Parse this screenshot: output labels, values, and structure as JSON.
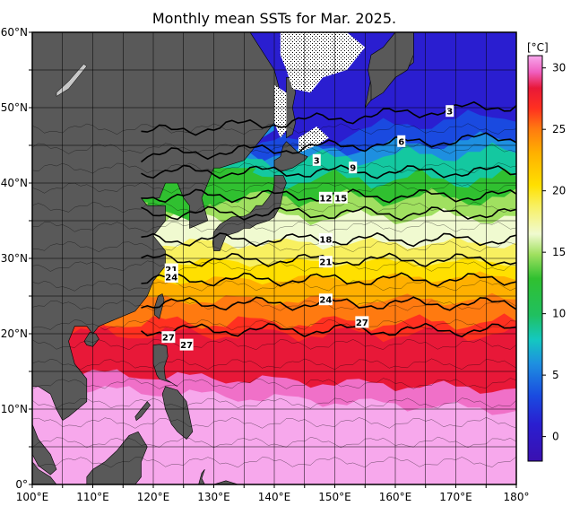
{
  "title": "Monthly mean SSTs for Mar. 2025.",
  "colorbar": {
    "unit": "[°C]",
    "ticks": [
      "30",
      "25",
      "20",
      "15",
      "10",
      "5",
      "0"
    ],
    "tick_values": [
      30,
      25,
      20,
      15,
      10,
      5,
      0
    ],
    "range": [
      -2,
      31
    ]
  },
  "axes": {
    "lon_labels": [
      "100°E",
      "110°E",
      "120°E",
      "130°E",
      "140°E",
      "150°E",
      "160°E",
      "170°E",
      "180°"
    ],
    "lat_labels": [
      "60°N",
      "50°N",
      "40°N",
      "30°N",
      "20°N",
      "10°N",
      "0°"
    ],
    "lon_range": [
      100,
      180
    ],
    "lat_range": [
      0,
      60
    ]
  },
  "isotherm_labels": [
    {
      "text": "3",
      "lon": 147,
      "lat": 43
    },
    {
      "text": "3",
      "lon": 169,
      "lat": 49.5
    },
    {
      "text": "6",
      "lon": 161,
      "lat": 45.5
    },
    {
      "text": "9",
      "lon": 153,
      "lat": 42
    },
    {
      "text": "12",
      "lon": 148.5,
      "lat": 38
    },
    {
      "text": "15",
      "lon": 151,
      "lat": 38
    },
    {
      "text": "18",
      "lon": 148.5,
      "lat": 32.5
    },
    {
      "text": "21",
      "lon": 148.5,
      "lat": 29.5
    },
    {
      "text": "21",
      "lon": 123,
      "lat": 28.5
    },
    {
      "text": "24",
      "lon": 123,
      "lat": 27.5
    },
    {
      "text": "24",
      "lon": 148.5,
      "lat": 24.5
    },
    {
      "text": "27",
      "lon": 154.5,
      "lat": 21.5
    },
    {
      "text": "27",
      "lon": 122.5,
      "lat": 19.5
    },
    {
      "text": "27",
      "lon": 125.5,
      "lat": 18.5
    }
  ],
  "colors": {
    "land": "#595959",
    "frame": "#000000",
    "graticule": "#000000"
  }
}
